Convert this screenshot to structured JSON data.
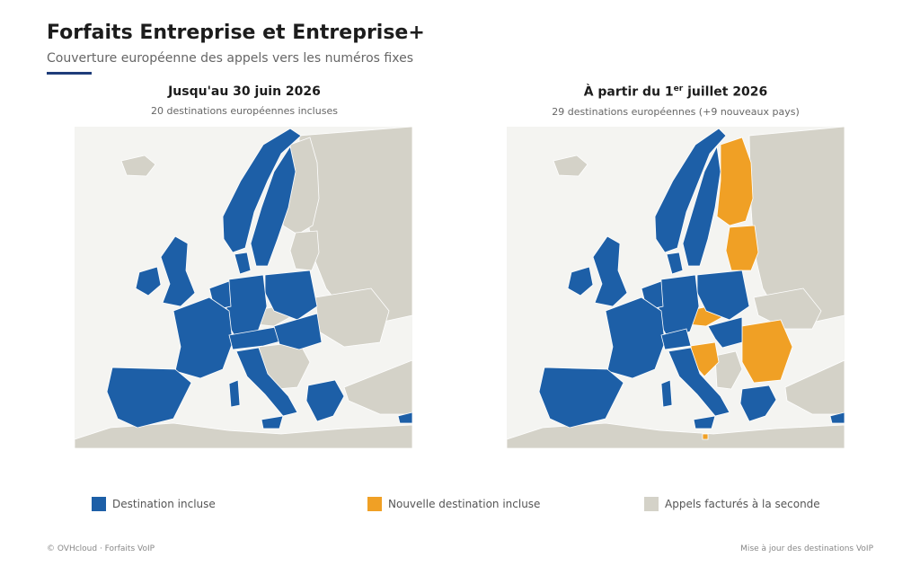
{
  "header": {
    "title": "Forfaits Entreprise et Entreprise+",
    "subtitle": "Couverture européenne des appels vers les numéros fixes"
  },
  "panels": [
    {
      "title": "Jusqu'au 30 juin 2026",
      "subtitle": "20 destinations européennes incluses"
    },
    {
      "title_prefix": "À partir du 1",
      "title_sup": "er",
      "title_suffix": " juillet 2026",
      "subtitle": "29 destinations européennes (+9 nouveaux pays)"
    }
  ],
  "legend": [
    {
      "label": "Destination incluse",
      "color": "#1d5fa7"
    },
    {
      "label": "Nouvelle destination incluse",
      "color": "#f0a025"
    },
    {
      "label": "Appels facturés à la seconde",
      "color": "#d4d2c8"
    }
  ],
  "colors": {
    "included": "#1d5fa7",
    "new": "#f0a025",
    "billed": "#d4d2c8",
    "sea": "#f4f4f1",
    "accent": "#1f3d7a"
  },
  "footer": {
    "left": "© OVHcloud · Forfaits VoIP",
    "right": "Mise à jour des destinations VoIP"
  }
}
